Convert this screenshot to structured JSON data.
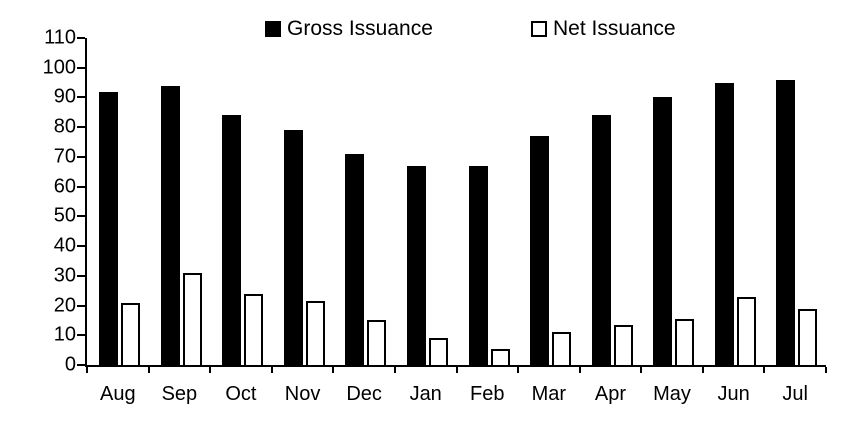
{
  "chart_data": {
    "type": "bar",
    "title": "",
    "xlabel": "",
    "ylabel": "",
    "categories": [
      "Aug",
      "Sep",
      "Oct",
      "Nov",
      "Dec",
      "Jan",
      "Feb",
      "Mar",
      "Apr",
      "May",
      "Jun",
      "Jul"
    ],
    "series": [
      {
        "name": "Gross Issuance",
        "fill": "#000000",
        "values": [
          92,
          94,
          84,
          79,
          71,
          67,
          67,
          77,
          84,
          90,
          95,
          96
        ]
      },
      {
        "name": "Net Issuance",
        "fill": "#ffffff",
        "stroke": "#000000",
        "values": [
          21,
          31,
          24,
          21.5,
          15,
          9,
          5.5,
          11,
          13.5,
          15.5,
          23,
          19
        ]
      }
    ],
    "ylim": [
      0,
      110
    ],
    "ytick_step": 10,
    "y_tick_labels": [
      "0",
      "10",
      "20",
      "30",
      "40",
      "50",
      "60",
      "70",
      "80",
      "90",
      "100",
      "110"
    ],
    "grid": false,
    "legend_position": "top",
    "colors": {
      "bar_fill": "#000000",
      "bar_outline": "#000000",
      "background": "#ffffff",
      "text": "#000000"
    }
  }
}
